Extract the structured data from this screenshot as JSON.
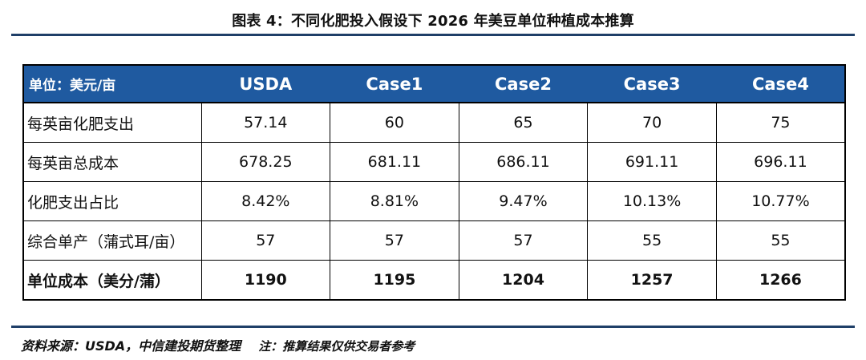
{
  "title": "图表 4：不同化肥投入假设下 2026 年美豆单位种植成本推算",
  "table": {
    "header_unit": "单位：美元/亩",
    "columns": [
      "USDA",
      "Case1",
      "Case2",
      "Case3",
      "Case4"
    ],
    "rows": [
      {
        "label": "每英亩化肥支出",
        "values": [
          "57.14",
          "60",
          "65",
          "70",
          "75"
        ]
      },
      {
        "label": "每英亩总成本",
        "values": [
          "678.25",
          "681.11",
          "686.11",
          "691.11",
          "696.11"
        ]
      },
      {
        "label": "化肥支出占比",
        "values": [
          "8.42%",
          "8.81%",
          "9.47%",
          "10.13%",
          "10.77%"
        ]
      },
      {
        "label": "综合单产（蒲式耳/亩）",
        "values": [
          "57",
          "57",
          "57",
          "55",
          "55"
        ]
      },
      {
        "label": "单位成本（美分/蒲）",
        "values": [
          "1190",
          "1195",
          "1204",
          "1257",
          "1266"
        ]
      }
    ]
  },
  "footer": {
    "source": "资料来源：USDA，中信建投期货整理",
    "note": "注：推算结果仅供交易者参考"
  },
  "colors": {
    "header_bg": "#1f5aa0",
    "rule": "#1f3f68"
  }
}
